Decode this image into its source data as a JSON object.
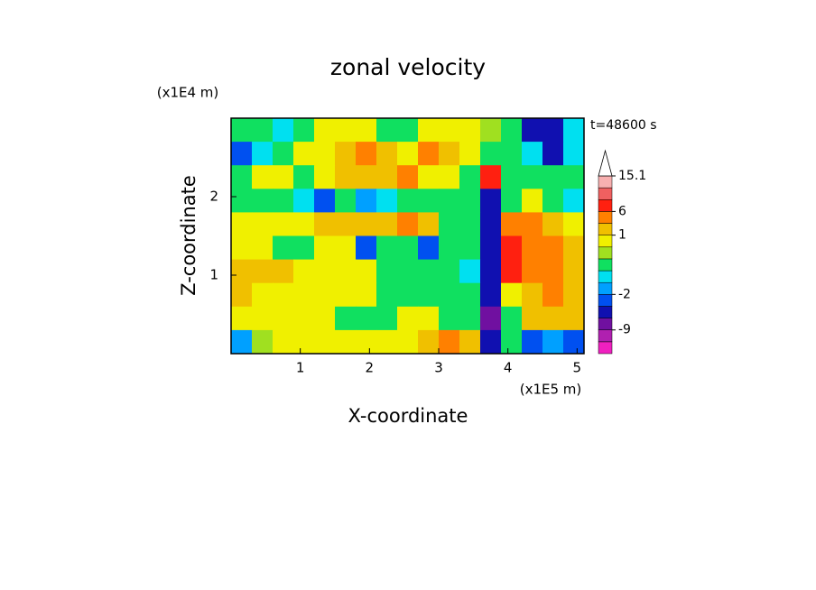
{
  "chart_data": {
    "type": "contour",
    "title": "zonal velocity",
    "x_label": "X-coordinate",
    "y_label": "Z-coordinate",
    "x_unit": "(x1E5 m)",
    "y_unit": "(x1E4 m)",
    "annotation": "t=48600 s",
    "xlim": [
      0,
      5.1
    ],
    "ylim": [
      0,
      3
    ],
    "xticks": [
      1,
      2,
      3,
      4,
      5
    ],
    "yticks": [
      1,
      2
    ],
    "x": [
      0.15,
      0.45,
      0.75,
      1.05,
      1.35,
      1.65,
      1.95,
      2.25,
      2.55,
      2.85,
      3.15,
      3.45,
      3.75,
      4.05,
      4.35,
      4.65,
      4.95
    ],
    "y": [
      2.85,
      2.55,
      2.25,
      1.95,
      1.65,
      1.35,
      1.05,
      0.75,
      0.45,
      0.15
    ],
    "z": [
      [
        -0.3,
        -0.3,
        -0.7,
        -0.3,
        0.7,
        0.7,
        0.7,
        -0.3,
        -0.3,
        0.7,
        0.7,
        0.7,
        0.2,
        -0.3,
        -4,
        -4,
        -0.7
      ],
      [
        -2.5,
        -0.7,
        -0.3,
        0.7,
        0.7,
        1.5,
        3,
        1.5,
        0.7,
        3,
        1.5,
        0.7,
        -0.3,
        -0.3,
        -0.7,
        -4,
        -0.7
      ],
      [
        -0.3,
        0.7,
        0.7,
        -0.3,
        0.7,
        1.5,
        1.5,
        1.5,
        3,
        0.7,
        0.7,
        -0.3,
        7,
        -0.3,
        -0.3,
        -0.3,
        -0.3
      ],
      [
        -0.3,
        -0.3,
        -0.3,
        -0.7,
        -2.5,
        -0.3,
        -1.5,
        -0.7,
        -0.3,
        -0.3,
        -0.3,
        -0.3,
        -4,
        -0.3,
        0.7,
        -0.3,
        -0.7
      ],
      [
        0.7,
        0.7,
        0.7,
        0.7,
        1.5,
        1.5,
        1.5,
        1.5,
        3,
        1.5,
        -0.3,
        -0.3,
        -4,
        3,
        3,
        1.5,
        0.7
      ],
      [
        0.7,
        0.7,
        -0.3,
        -0.3,
        0.7,
        0.7,
        -2.5,
        -0.3,
        -0.3,
        -2.5,
        -0.3,
        -0.3,
        -4,
        7,
        3,
        3,
        1.5
      ],
      [
        1.5,
        1.5,
        1.5,
        0.7,
        0.7,
        0.7,
        0.7,
        -0.3,
        -0.3,
        -0.3,
        -0.3,
        -0.7,
        -4,
        7,
        3,
        3,
        1.5
      ],
      [
        1.5,
        0.7,
        0.7,
        0.7,
        0.7,
        0.7,
        0.7,
        -0.3,
        -0.3,
        -0.3,
        -0.3,
        -0.3,
        -4,
        0.7,
        1.5,
        3,
        1.5
      ],
      [
        0.7,
        0.7,
        0.7,
        0.7,
        0.7,
        -0.3,
        -0.3,
        -0.3,
        0.7,
        0.7,
        -0.3,
        -0.3,
        -9,
        -0.3,
        1.5,
        1.5,
        1.5
      ],
      [
        -1.5,
        0.2,
        0.7,
        0.7,
        0.7,
        0.7,
        0.7,
        0.7,
        0.7,
        1.5,
        3,
        1.5,
        -4,
        -0.3,
        -2.5,
        -1.5,
        -2.5
      ]
    ],
    "levels": [
      -15,
      -12,
      -9,
      -6,
      -3,
      -2,
      -1,
      -0.5,
      0,
      0.5,
      1,
      2,
      6,
      9,
      12,
      15.1
    ],
    "colors": [
      "#f020c0",
      "#b020b0",
      "#7010a0",
      "#1010b0",
      "#0050f0",
      "#00a0ff",
      "#00e0f0",
      "#10e060",
      "#a0e020",
      "#f0f000",
      "#f0c000",
      "#ff8000",
      "#ff2010",
      "#f06060",
      "#f8b0b0"
    ],
    "colorbar_ticks": [
      -9,
      -2,
      1,
      6,
      15.1
    ]
  }
}
